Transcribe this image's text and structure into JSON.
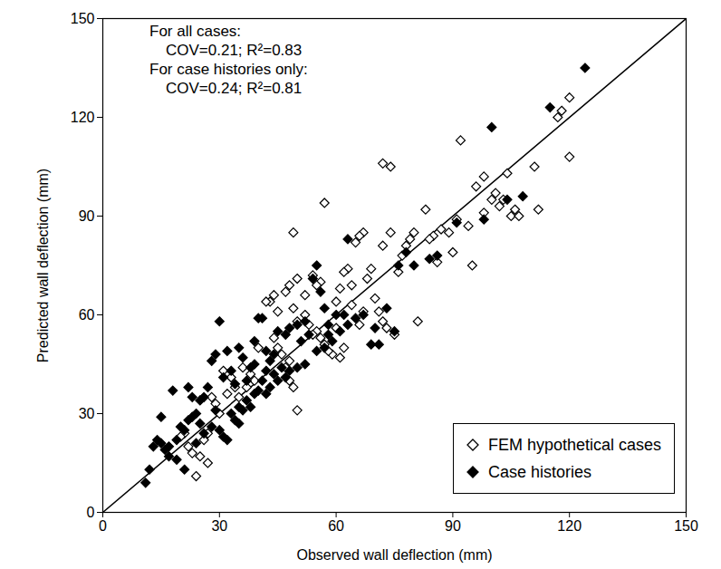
{
  "chart_data": {
    "type": "scatter",
    "x_label": "Observed wall deflection (mm)",
    "y_label": "Predicted wall deflection (mm)",
    "xlim": [
      0,
      150
    ],
    "ylim": [
      0,
      150
    ],
    "xticks": [
      0,
      30,
      60,
      90,
      120,
      150
    ],
    "yticks": [
      0,
      30,
      60,
      90,
      120,
      150
    ],
    "grid": false,
    "legend": "bottom-right",
    "annotations": [
      "For all cases:",
      "COV=0.21; R²=0.83",
      "For case histories only:",
      "COV=0.24; R²=0.81"
    ],
    "series": [
      {
        "name": "FEM hypothetical cases",
        "color": "#000000",
        "marker": "diamond_open",
        "x": [
          92,
          96,
          98,
          100,
          101,
          102,
          103,
          104,
          105,
          106,
          111,
          112,
          117,
          118,
          120,
          120,
          95,
          90,
          89,
          87,
          85,
          83,
          81,
          80,
          79,
          77,
          76,
          74,
          72,
          74,
          72,
          69,
          68,
          67,
          66,
          65,
          63,
          64,
          62,
          61,
          60,
          57,
          56,
          55,
          54,
          52,
          50,
          49,
          48,
          47,
          45,
          44,
          43,
          42,
          50,
          49,
          48,
          47,
          46,
          45,
          44,
          60,
          62,
          61,
          59,
          58,
          57,
          56,
          55,
          54,
          53,
          52,
          50,
          49,
          48,
          40,
          39,
          38,
          37,
          36,
          35,
          34,
          33,
          32,
          31,
          30,
          29,
          28,
          27,
          26,
          25,
          24,
          27,
          23,
          22,
          21,
          20,
          70,
          71,
          72,
          75,
          73,
          78,
          84,
          86,
          91,
          94,
          98,
          107,
          66,
          67,
          64
        ],
        "y": [
          113,
          99,
          102,
          95,
          97,
          93,
          95,
          103,
          90,
          92,
          105,
          92,
          120,
          122,
          126,
          108,
          75,
          79,
          85,
          86,
          84,
          92,
          58,
          85,
          83,
          78,
          73,
          105,
          106,
          85,
          81,
          74,
          71,
          85,
          84,
          82,
          74,
          69,
          73,
          68,
          64,
          94,
          70,
          69,
          72,
          66,
          71,
          85,
          69,
          67,
          61,
          66,
          64,
          64,
          31,
          38,
          40,
          44,
          48,
          50,
          53,
          56,
          50,
          47,
          48,
          49,
          51,
          53,
          55,
          54,
          57,
          60,
          58,
          62,
          46,
          50,
          40,
          42,
          38,
          44,
          35,
          38,
          41,
          36,
          43,
          30,
          33,
          35,
          24,
          22,
          17,
          11,
          15,
          18,
          20,
          24,
          23,
          65,
          61,
          58,
          54,
          56,
          81,
          83,
          76,
          89,
          87,
          91,
          90,
          57,
          61,
          63
        ]
      },
      {
        "name": "Case histories",
        "color": "#000000",
        "marker": "diamond",
        "x": [
          124,
          115,
          108,
          100,
          104,
          98,
          91,
          86,
          84,
          80,
          78,
          76,
          75,
          73,
          71,
          69,
          63,
          62,
          60,
          58,
          57,
          56,
          55,
          54,
          53,
          52,
          51,
          50,
          48,
          47,
          45,
          44,
          43,
          42,
          41,
          40,
          39,
          38,
          37,
          36,
          35,
          34,
          33,
          32,
          31,
          30,
          29,
          28,
          27,
          26,
          25,
          24,
          23,
          22,
          21,
          20,
          19,
          18,
          17,
          16,
          15,
          14,
          13,
          12,
          11,
          15,
          17,
          19,
          21,
          22,
          23,
          24,
          25,
          26,
          28,
          29,
          30,
          31,
          32,
          33,
          34,
          35,
          36,
          37,
          38,
          39,
          40,
          41,
          42,
          43,
          44,
          45,
          46,
          47,
          48,
          50,
          52,
          55,
          57,
          58,
          59,
          61,
          63,
          65,
          67,
          70,
          39,
          42,
          35
        ],
        "y": [
          135,
          123,
          96,
          117,
          95,
          89,
          88,
          78,
          77,
          75,
          79,
          75,
          55,
          62,
          51,
          51,
          83,
          60,
          60,
          57,
          62,
          67,
          75,
          71,
          54,
          58,
          52,
          57,
          56,
          54,
          55,
          48,
          46,
          43,
          59,
          59,
          45,
          44,
          40,
          47,
          50,
          39,
          43,
          49,
          41,
          58,
          48,
          46,
          38,
          35,
          34,
          30,
          29,
          28,
          25,
          26,
          22,
          37,
          20,
          19,
          21,
          22,
          20,
          13,
          9,
          29,
          17,
          16,
          13,
          38,
          35,
          21,
          27,
          24,
          26,
          31,
          25,
          23,
          22,
          30,
          28,
          32,
          31,
          34,
          32,
          36,
          37,
          40,
          36,
          38,
          42,
          40,
          44,
          41,
          43,
          44,
          45,
          49,
          50,
          54,
          52,
          55,
          57,
          59,
          60,
          56,
          52,
          49,
          27
        ]
      }
    ]
  }
}
